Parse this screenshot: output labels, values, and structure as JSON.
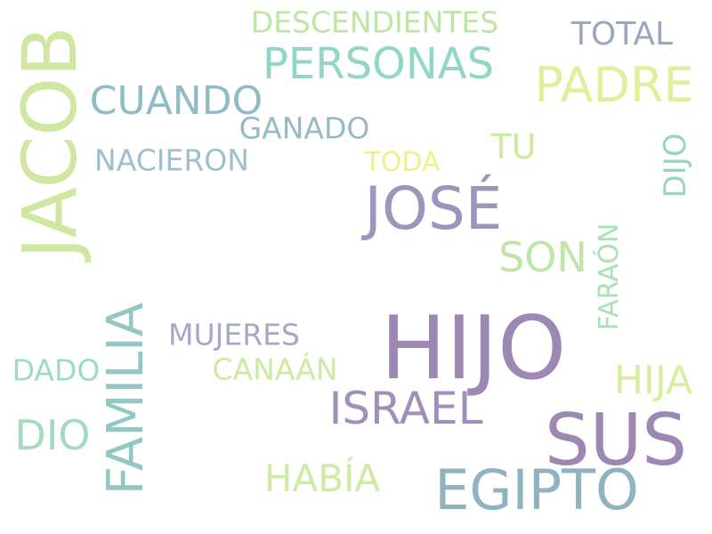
{
  "words": {
    "hijo": {
      "text": "HIJO",
      "color": "#9d88b3"
    },
    "sus": {
      "text": "SUS",
      "color": "#9d88b3"
    },
    "jacob": {
      "text": "JACOB",
      "color": "#cfe7a1"
    },
    "jose": {
      "text": "JOSÉ",
      "color": "#9d95bb"
    },
    "egipto": {
      "text": "EGIPTO",
      "color": "#90b4bf"
    },
    "familia": {
      "text": "FAMILIA",
      "color": "#93c7c4"
    },
    "israel": {
      "text": "ISRAEL",
      "color": "#a090b8"
    },
    "padre": {
      "text": "PADRE",
      "color": "#e0ef9a"
    },
    "personas": {
      "text": "PERSONAS",
      "color": "#91d6c6"
    },
    "cuando": {
      "text": "CUANDO",
      "color": "#8fbcc4"
    },
    "son": {
      "text": "SON",
      "color": "#bfe6a6"
    },
    "dio": {
      "text": "DIO",
      "color": "#a4dbc0"
    },
    "habia": {
      "text": "HABÍA",
      "color": "#cdeba3"
    },
    "hija": {
      "text": "HIJA",
      "color": "#d6ee9f"
    },
    "descendientes": {
      "text": "DESCENDIENTES",
      "color": "#bde6a0"
    },
    "total": {
      "text": "TOTAL",
      "color": "#9ca6c0"
    },
    "tu": {
      "text": "TU",
      "color": "#c9eb9c"
    },
    "dijo": {
      "text": "DIJO",
      "color": "#96d6c0"
    },
    "ganado": {
      "text": "GANADO",
      "color": "#97b9c6"
    },
    "nacieron": {
      "text": "NACIERON",
      "color": "#9ebfcb"
    },
    "toda": {
      "text": "TODA",
      "color": "#eef08a"
    },
    "mujeres": {
      "text": "MUJERES",
      "color": "#a4a9c8"
    },
    "canaan": {
      "text": "CANAÁN",
      "color": "#cbeaa2"
    },
    "dado": {
      "text": "DADO",
      "color": "#9cdcc4"
    },
    "faraon": {
      "text": "FARAÓN",
      "color": "#a9e0b6"
    }
  }
}
